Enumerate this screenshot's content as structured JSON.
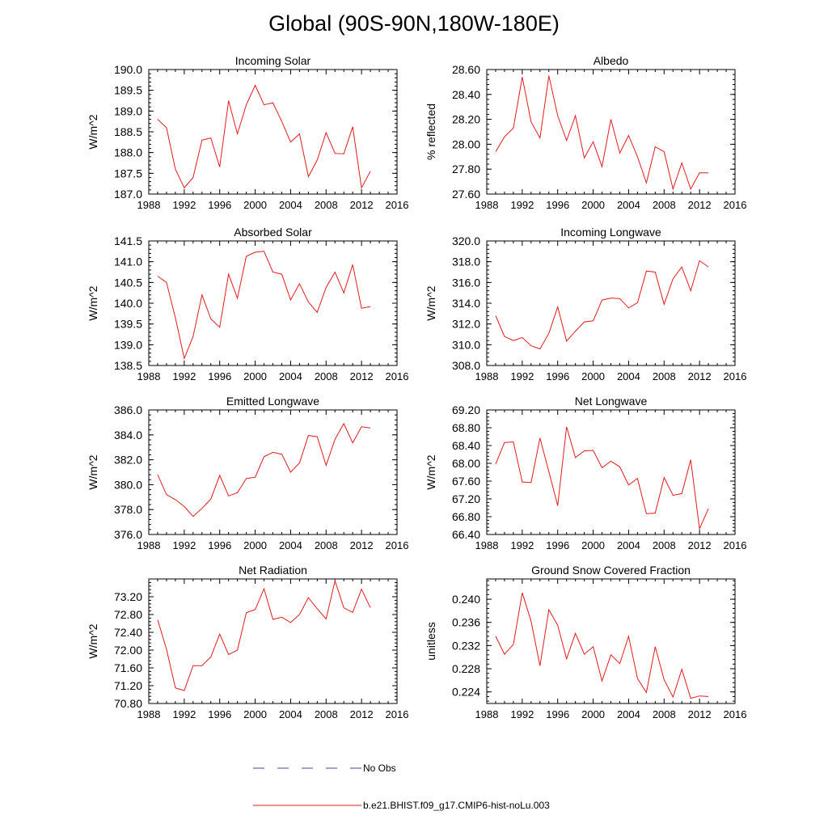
{
  "page": {
    "title": "Global (90S-90N,180W-180E)"
  },
  "legend": {
    "entries": [
      {
        "label": "No Obs",
        "style": "dashed",
        "color": "#4a4aa8"
      },
      {
        "label": "b.e21.BHIST.f09_g17.CMIP6-hist-noLu.003",
        "style": "solid",
        "color": "#e41a1c"
      }
    ]
  },
  "colors": {
    "series": "#e41a1c",
    "axis": "#000000"
  },
  "chart_data": [
    {
      "type": "line",
      "title": "Incoming Solar",
      "ylabel": "W/m^2",
      "xlim": [
        1988,
        2016
      ],
      "ylim": [
        187.0,
        190.0
      ],
      "x_ticks": [
        "1988",
        "1992",
        "1996",
        "2000",
        "2004",
        "2008",
        "2012",
        "2016"
      ],
      "y_ticks": [
        "187.0",
        "187.5",
        "188.0",
        "188.5",
        "189.0",
        "189.5",
        "190.0"
      ],
      "x": [
        1989,
        1990,
        1991,
        1992,
        1993,
        1994,
        1995,
        1996,
        1997,
        1998,
        1999,
        2000,
        2001,
        2002,
        2003,
        2004,
        2005,
        2006,
        2007,
        2008,
        2009,
        2010,
        2011,
        2012,
        2013
      ],
      "series": [
        {
          "values": [
            188.8,
            188.6,
            187.6,
            187.15,
            187.4,
            188.3,
            188.35,
            187.65,
            189.25,
            188.45,
            189.15,
            189.62,
            189.15,
            189.2,
            188.75,
            188.25,
            188.45,
            187.42,
            187.82,
            188.48,
            187.98,
            187.97,
            188.62,
            187.15,
            187.55
          ]
        }
      ]
    },
    {
      "type": "line",
      "title": "Albedo",
      "ylabel": "% reflected",
      "xlim": [
        1988,
        2016
      ],
      "ylim": [
        27.6,
        28.6
      ],
      "x_ticks": [
        "1988",
        "1992",
        "1996",
        "2000",
        "2004",
        "2008",
        "2012",
        "2016"
      ],
      "y_ticks": [
        "27.60",
        "27.80",
        "28.00",
        "28.20",
        "28.40",
        "28.60"
      ],
      "x": [
        1989,
        1990,
        1991,
        1992,
        1993,
        1994,
        1995,
        1996,
        1997,
        1998,
        1999,
        2000,
        2001,
        2002,
        2003,
        2004,
        2005,
        2006,
        2007,
        2008,
        2009,
        2010,
        2011,
        2012,
        2013
      ],
      "series": [
        {
          "values": [
            27.94,
            28.06,
            28.13,
            28.54,
            28.18,
            28.05,
            28.55,
            28.23,
            28.03,
            28.23,
            27.89,
            28.02,
            27.82,
            28.2,
            27.93,
            28.07,
            27.9,
            27.69,
            27.98,
            27.94,
            27.64,
            27.85,
            27.64,
            27.77,
            27.77
          ]
        }
      ]
    },
    {
      "type": "line",
      "title": "Absorbed Solar",
      "ylabel": "W/m^2",
      "xlim": [
        1988,
        2016
      ],
      "ylim": [
        138.5,
        141.5
      ],
      "x_ticks": [
        "1988",
        "1992",
        "1996",
        "2000",
        "2004",
        "2008",
        "2012",
        "2016"
      ],
      "y_ticks": [
        "138.5",
        "139.0",
        "139.5",
        "140.0",
        "140.5",
        "141.0",
        "141.5"
      ],
      "x": [
        1989,
        1990,
        1991,
        1992,
        1993,
        1994,
        1995,
        1996,
        1997,
        1998,
        1999,
        2000,
        2001,
        2002,
        2003,
        2004,
        2005,
        2006,
        2007,
        2008,
        2009,
        2010,
        2011,
        2012,
        2013
      ],
      "series": [
        {
          "values": [
            140.65,
            140.5,
            139.65,
            138.67,
            139.2,
            140.2,
            139.62,
            139.42,
            140.7,
            140.12,
            141.13,
            141.23,
            141.25,
            140.75,
            140.7,
            140.08,
            140.47,
            140.03,
            139.78,
            140.38,
            140.75,
            140.25,
            140.93,
            139.88,
            139.92
          ]
        }
      ]
    },
    {
      "type": "line",
      "title": "Incoming Longwave",
      "ylabel": "W/m^2",
      "xlim": [
        1988,
        2016
      ],
      "ylim": [
        308.0,
        320.0
      ],
      "x_ticks": [
        "1988",
        "1992",
        "1996",
        "2000",
        "2004",
        "2008",
        "2012",
        "2016"
      ],
      "y_ticks": [
        "308.0",
        "310.0",
        "312.0",
        "314.0",
        "316.0",
        "318.0",
        "320.0"
      ],
      "x": [
        1989,
        1990,
        1991,
        1992,
        1993,
        1994,
        1995,
        1996,
        1997,
        1998,
        1999,
        2000,
        2001,
        2002,
        2003,
        2004,
        2005,
        2006,
        2007,
        2008,
        2009,
        2010,
        2011,
        2012,
        2013
      ],
      "series": [
        {
          "values": [
            312.8,
            310.8,
            310.4,
            310.7,
            309.9,
            309.6,
            311.1,
            313.65,
            310.35,
            311.3,
            312.2,
            312.3,
            314.3,
            314.5,
            314.45,
            313.55,
            314.05,
            317.1,
            317.0,
            313.9,
            316.35,
            317.5,
            315.2,
            318.1,
            317.5
          ]
        }
      ]
    },
    {
      "type": "line",
      "title": "Emitted Longwave",
      "ylabel": "W/m^2",
      "xlim": [
        1988,
        2016
      ],
      "ylim": [
        376.0,
        386.0
      ],
      "x_ticks": [
        "1988",
        "1992",
        "1996",
        "2000",
        "2004",
        "2008",
        "2012",
        "2016"
      ],
      "y_ticks": [
        "376.0",
        "378.0",
        "380.0",
        "382.0",
        "384.0",
        "386.0"
      ],
      "x": [
        1989,
        1990,
        1991,
        1992,
        1993,
        1994,
        1995,
        1996,
        1997,
        1998,
        1999,
        2000,
        2001,
        2002,
        2003,
        2004,
        2005,
        2006,
        2007,
        2008,
        2009,
        2010,
        2011,
        2012,
        2013
      ],
      "series": [
        {
          "values": [
            380.8,
            379.2,
            378.8,
            378.25,
            377.45,
            378.1,
            378.85,
            380.75,
            379.1,
            379.35,
            380.5,
            380.6,
            382.25,
            382.6,
            382.45,
            381.0,
            381.75,
            383.95,
            383.85,
            381.55,
            383.65,
            384.9,
            383.35,
            384.65,
            384.55
          ]
        }
      ]
    },
    {
      "type": "line",
      "title": "Net Longwave",
      "ylabel": "W/m^2",
      "xlim": [
        1988,
        2016
      ],
      "ylim": [
        66.4,
        69.2
      ],
      "x_ticks": [
        "1988",
        "1992",
        "1996",
        "2000",
        "2004",
        "2008",
        "2012",
        "2016"
      ],
      "y_ticks": [
        "66.40",
        "66.80",
        "67.20",
        "67.60",
        "68.00",
        "68.40",
        "68.80",
        "69.20"
      ],
      "x": [
        1989,
        1990,
        1991,
        1992,
        1993,
        1994,
        1995,
        1996,
        1997,
        1998,
        1999,
        2000,
        2001,
        2002,
        2003,
        2004,
        2005,
        2006,
        2007,
        2008,
        2009,
        2010,
        2011,
        2012,
        2013
      ],
      "series": [
        {
          "values": [
            67.98,
            68.47,
            68.48,
            67.58,
            67.57,
            68.57,
            67.81,
            67.05,
            68.82,
            68.13,
            68.28,
            68.29,
            67.9,
            68.05,
            67.92,
            67.51,
            67.66,
            66.87,
            66.88,
            67.68,
            67.28,
            67.32,
            68.08,
            66.53,
            66.98
          ]
        }
      ]
    },
    {
      "type": "line",
      "title": "Net Radiation",
      "ylabel": "W/m^2",
      "xlim": [
        1988,
        2016
      ],
      "ylim": [
        70.8,
        73.6
      ],
      "x_ticks": [
        "1988",
        "1992",
        "1996",
        "2000",
        "2004",
        "2008",
        "2012",
        "2016"
      ],
      "y_ticks": [
        "70.80",
        "71.20",
        "71.60",
        "72.00",
        "72.40",
        "72.80",
        "73.20"
      ],
      "x": [
        1989,
        1990,
        1991,
        1992,
        1993,
        1994,
        1995,
        1996,
        1997,
        1998,
        1999,
        2000,
        2001,
        2002,
        2003,
        2004,
        2005,
        2006,
        2007,
        2008,
        2009,
        2010,
        2011,
        2012,
        2013
      ],
      "series": [
        {
          "values": [
            72.68,
            72.02,
            71.15,
            71.09,
            71.65,
            71.65,
            71.85,
            72.36,
            71.9,
            72.0,
            72.84,
            72.91,
            73.38,
            72.69,
            72.74,
            72.62,
            72.8,
            73.18,
            72.93,
            72.7,
            73.56,
            72.95,
            72.85,
            73.37,
            72.95
          ]
        }
      ]
    },
    {
      "type": "line",
      "title": "Ground Snow Covered Fraction",
      "ylabel": "unitless",
      "xlim": [
        1988,
        2016
      ],
      "ylim": [
        0.222,
        0.2435
      ],
      "x_ticks": [
        "1988",
        "1992",
        "1996",
        "2000",
        "2004",
        "2008",
        "2012",
        "2016"
      ],
      "y_ticks": [
        "0.224",
        "0.228",
        "0.232",
        "0.236",
        "0.240"
      ],
      "x": [
        1989,
        1990,
        1991,
        1992,
        1993,
        1994,
        1995,
        1996,
        1997,
        1998,
        1999,
        2000,
        2001,
        2002,
        2003,
        2004,
        2005,
        2006,
        2007,
        2008,
        2009,
        2010,
        2011,
        2012,
        2013
      ],
      "series": [
        {
          "values": [
            0.2336,
            0.2305,
            0.2322,
            0.2411,
            0.2362,
            0.2285,
            0.2382,
            0.2355,
            0.2297,
            0.2341,
            0.2305,
            0.2318,
            0.2259,
            0.2304,
            0.2289,
            0.2336,
            0.2263,
            0.2239,
            0.2318,
            0.2261,
            0.2231,
            0.2279,
            0.2229,
            0.2233,
            0.2232
          ]
        }
      ]
    }
  ]
}
